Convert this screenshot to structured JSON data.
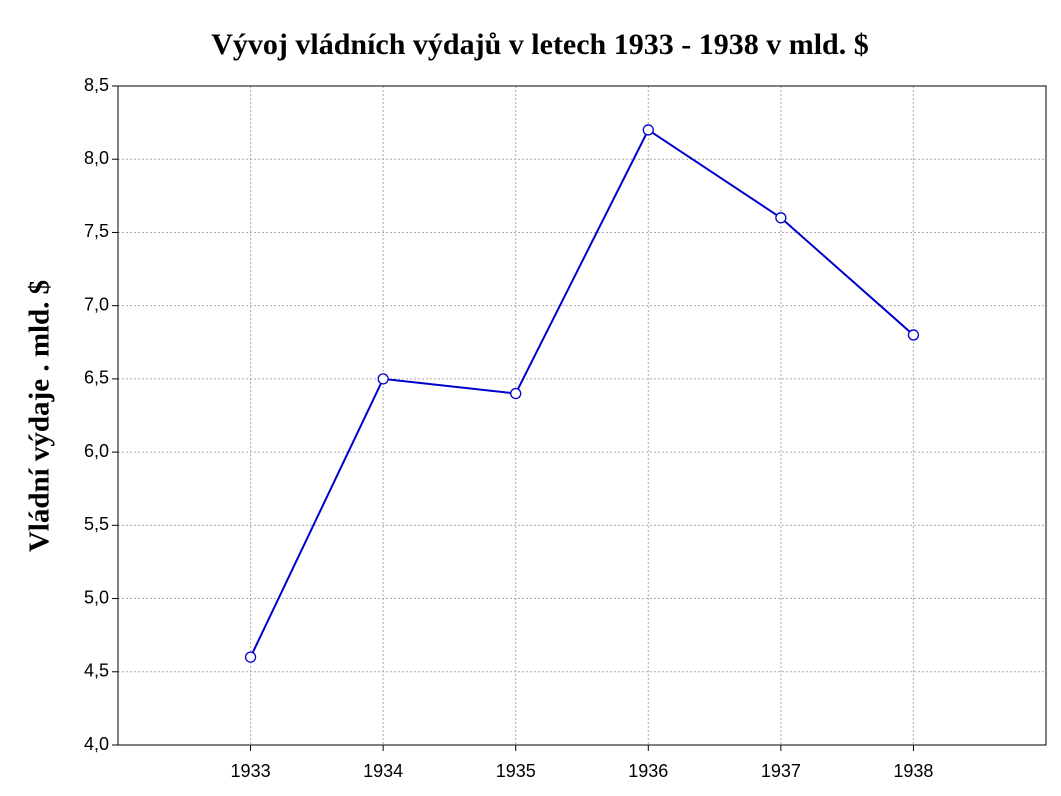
{
  "chart_data": {
    "type": "line",
    "title": "Vývoj vládních výdajů v letech 1933 - 1938 v mld. $",
    "y_label": "Vládní výdaje . mld. $",
    "x": [
      1933,
      1934,
      1935,
      1936,
      1937,
      1938
    ],
    "series": [
      {
        "name": "Vládní výdaje",
        "color": "#0000cc",
        "values": [
          4.6,
          6.5,
          6.4,
          8.2,
          7.6,
          6.8
        ]
      }
    ],
    "xlim": [
      1932,
      1939
    ],
    "xticks": [
      1933,
      1934,
      1935,
      1936,
      1937,
      1938
    ],
    "ylim": [
      4,
      8.5
    ],
    "yticks": [
      {
        "value": 4,
        "label": "4,0"
      },
      {
        "value": 4.5,
        "label": "4,5"
      },
      {
        "value": 5,
        "label": "5,0"
      },
      {
        "value": 5.5,
        "label": "5,5"
      },
      {
        "value": 6,
        "label": "6,0"
      },
      {
        "value": 6.5,
        "label": "6,5"
      },
      {
        "value": 7,
        "label": "7,0"
      },
      {
        "value": 7.5,
        "label": "7,5"
      },
      {
        "value": 8,
        "label": "8,0"
      },
      {
        "value": 8.5,
        "label": "8,5"
      }
    ],
    "grid": true
  }
}
